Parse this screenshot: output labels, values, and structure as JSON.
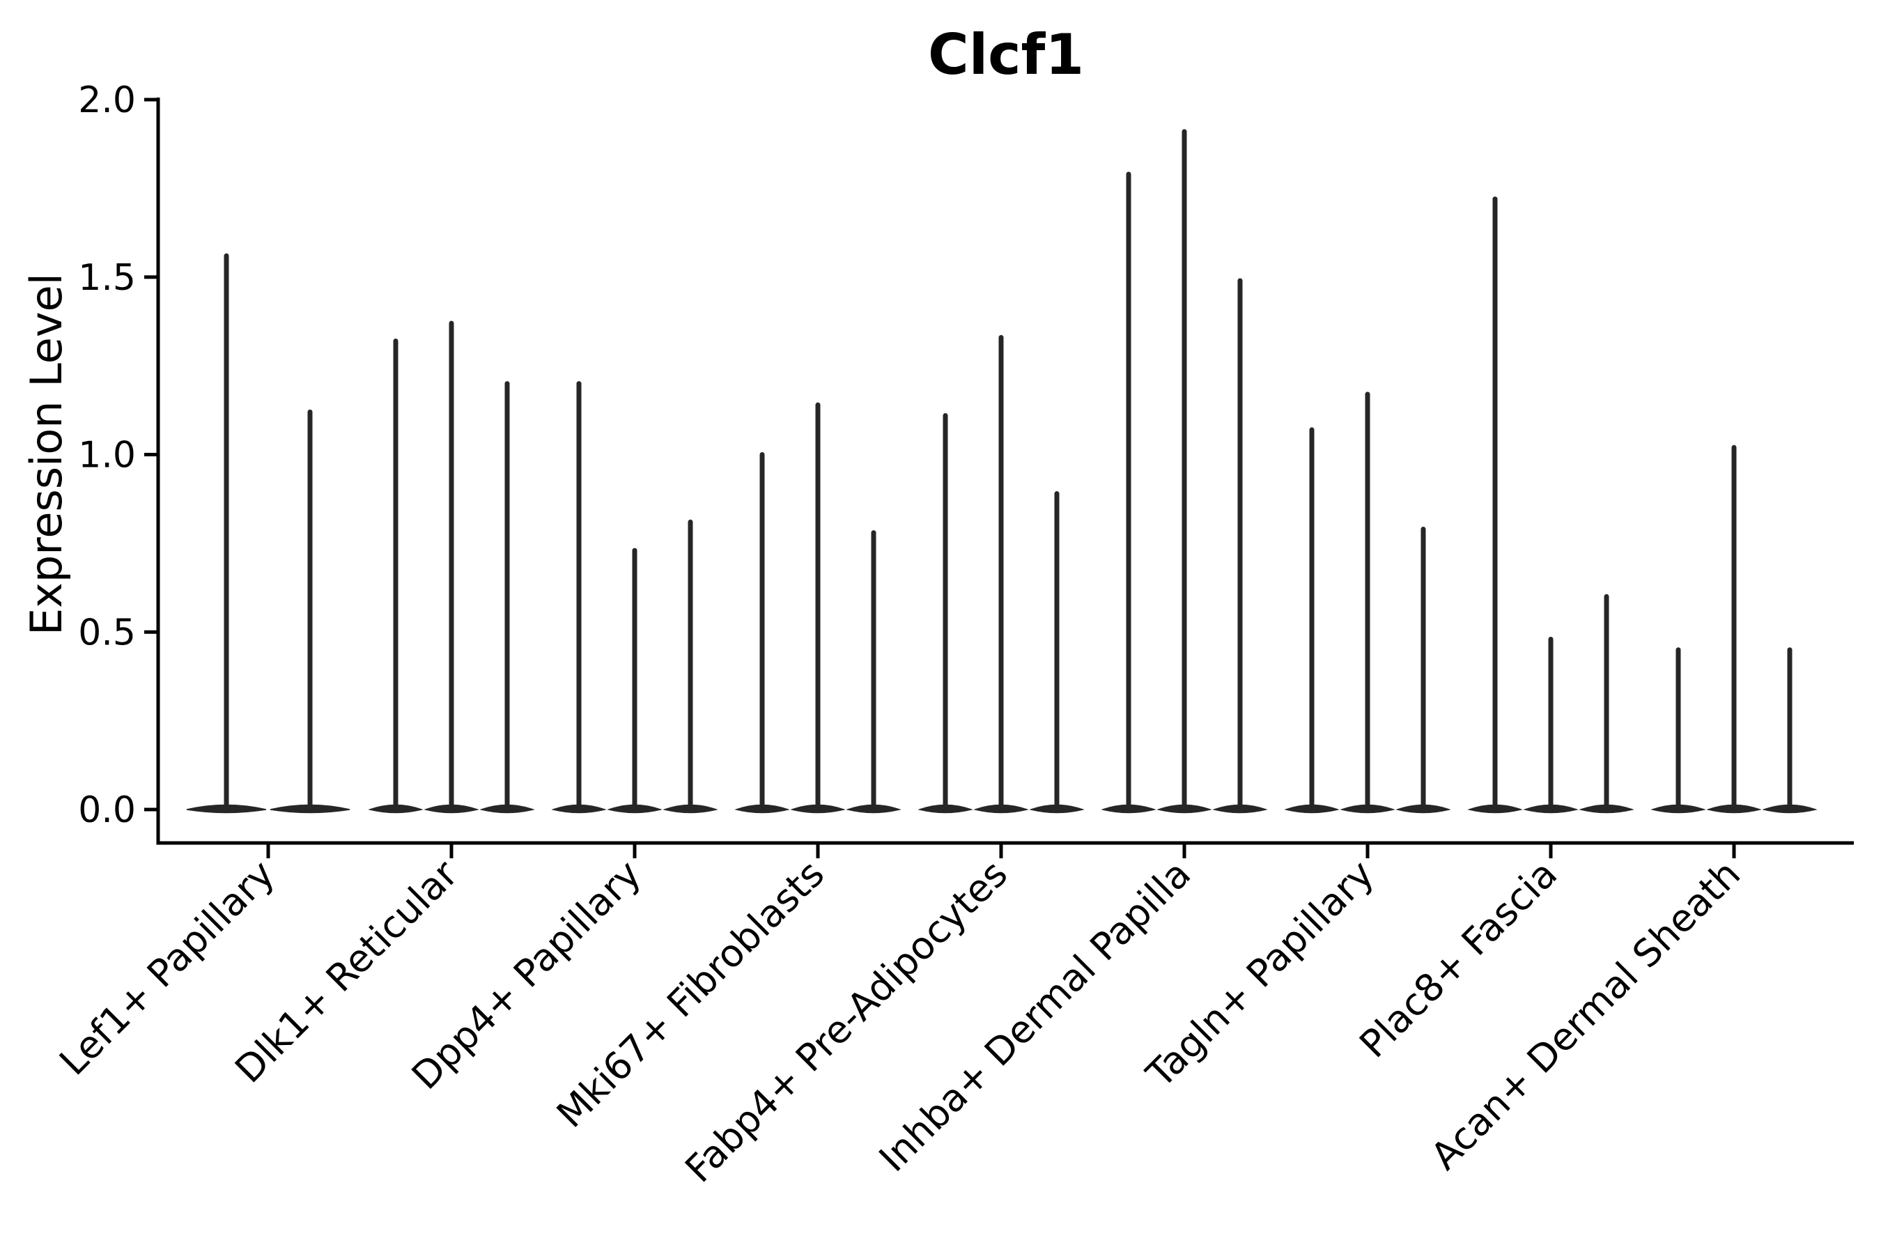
{
  "figure": {
    "title": "Clcf1",
    "ylabel": "Expression Level"
  },
  "chart_data": {
    "type": "violin",
    "title": "Clcf1",
    "xlabel": "",
    "ylabel": "Expression Level",
    "ylim": [
      0,
      2.0
    ],
    "yticks": [
      0.0,
      0.5,
      1.0,
      1.5,
      2.0
    ],
    "ytick_labels": [
      "0.0",
      "0.5",
      "1.0",
      "1.5",
      "2.0"
    ],
    "grid": false,
    "legend_position": "none",
    "background_color": "#ffffff",
    "axis_color": "#000000",
    "violin_color": "#262626",
    "categories": [
      "Lef1+ Papillary",
      "Dlk1+ Reticular",
      "Dpp4+ Papillary",
      "Mki67+ Fibroblasts",
      "Fabp4+ Pre-Adipocytes",
      "Inhba+ Dermal Papilla",
      "Tagln+ Papillary",
      "Plac8+ Fascia",
      "Acan+ Dermal Sheath"
    ],
    "groups": [
      {
        "label": "Lef1+ Papillary",
        "spike_max_values": [
          1.56,
          1.12
        ]
      },
      {
        "label": "Dlk1+ Reticular",
        "spike_max_values": [
          1.32,
          1.37,
          1.2
        ]
      },
      {
        "label": "Dpp4+ Papillary",
        "spike_max_values": [
          1.2,
          0.73,
          0.81
        ]
      },
      {
        "label": "Mki67+ Fibroblasts",
        "spike_max_values": [
          1.0,
          1.14,
          0.78
        ]
      },
      {
        "label": "Fabp4+ Pre-Adipocytes",
        "spike_max_values": [
          1.11,
          1.33,
          0.89
        ]
      },
      {
        "label": "Inhba+ Dermal Papilla",
        "spike_max_values": [
          1.79,
          1.91,
          1.49
        ]
      },
      {
        "label": "Tagln+ Papillary",
        "spike_max_values": [
          1.07,
          1.17,
          0.79
        ]
      },
      {
        "label": "Plac8+ Fascia",
        "spike_max_values": [
          1.72,
          0.48,
          0.6
        ]
      },
      {
        "label": "Acan+ Dermal Sheath",
        "spike_max_values": [
          0.45,
          1.02,
          0.45
        ]
      }
    ],
    "note": "Each violin is collapsed to a flat disc at expression 0 with a thin vertical density spike reaching its maximum expression value."
  }
}
